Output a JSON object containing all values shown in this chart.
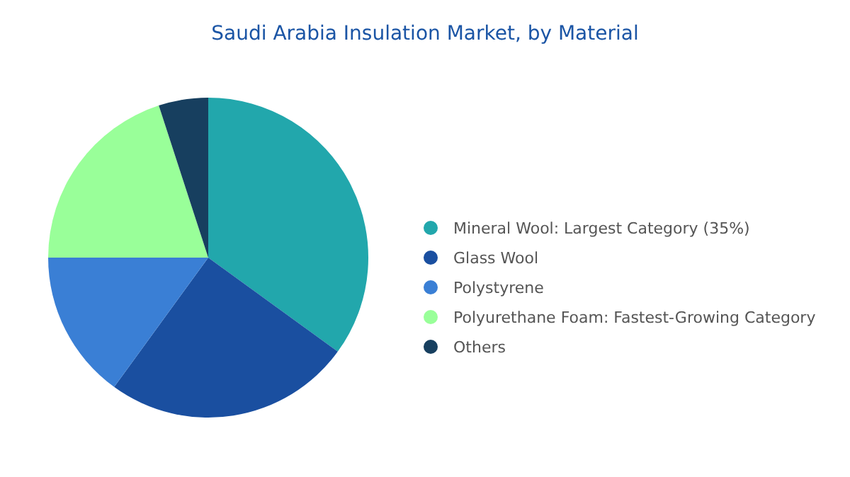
{
  "chart_data": {
    "type": "pie",
    "title": "Saudi Arabia Insulation Market, by Material",
    "categories": [
      "Mineral Wool:  Largest Category (35%)",
      "Glass Wool",
      "Polystyrene",
      "Polyurethane Foam:  Fastest-Growing Category",
      "Others"
    ],
    "values": [
      35,
      25,
      15,
      20,
      5
    ],
    "colors": [
      "#22a7ac",
      "#1a4fa0",
      "#3a7fd5",
      "#99ff99",
      "#173f5f"
    ],
    "legend": "right"
  }
}
